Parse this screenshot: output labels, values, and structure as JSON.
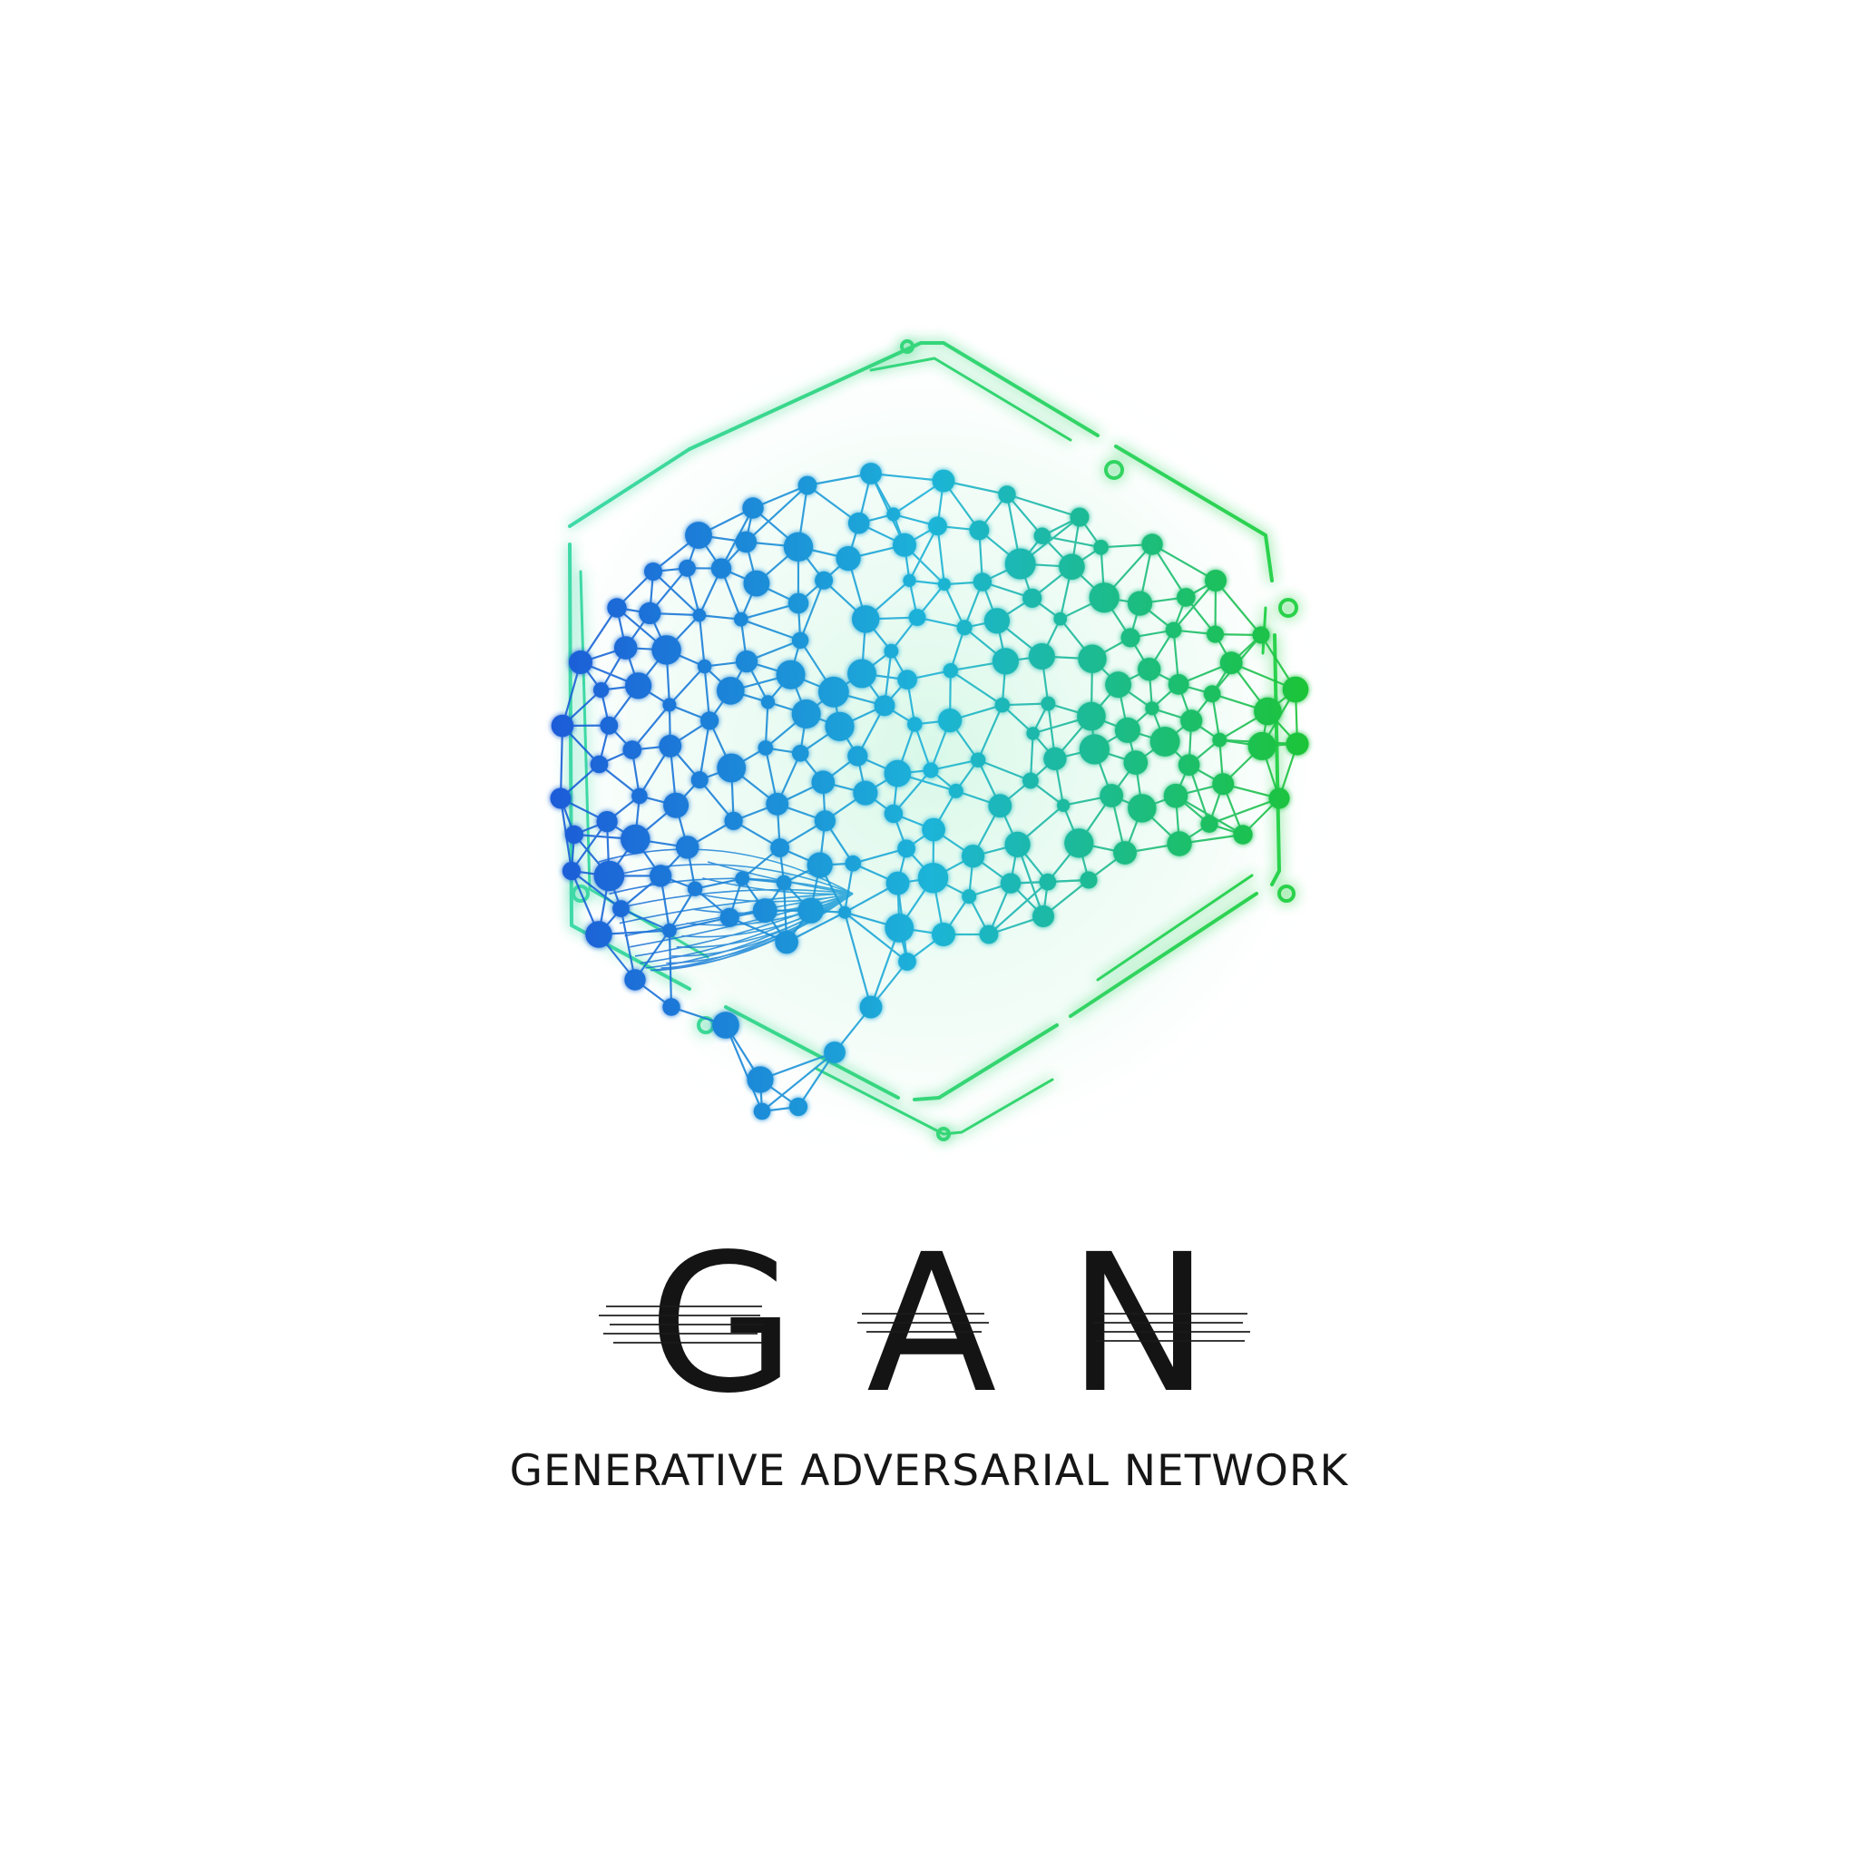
{
  "logo": {
    "wordmark": "GAN",
    "tagline": "GENERATIVE ADVERSARIAL NETWORK",
    "icons": {
      "frame": "hexagon-frame-icon",
      "brain": "neural-network-brain-icon"
    }
  },
  "colors": {
    "background": "#ffffff",
    "text": "#141414",
    "gradient_start": "#1a5cd8",
    "gradient_mid": "#1fb4d8",
    "gradient_end": "#1ec438",
    "frame_start": "#3fd9a8",
    "frame_end": "#2bd24a"
  }
}
